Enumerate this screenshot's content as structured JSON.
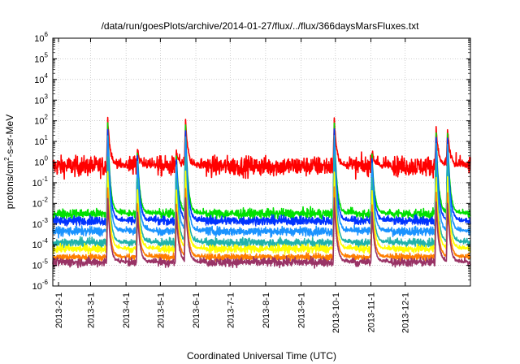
{
  "chart_data": {
    "type": "line",
    "title": "/data/run/goesPlots/archive/2014-01-27/flux/../flux/366daysMarsFluxes.txt",
    "xlabel": "Coordinated Universal Time (UTC)",
    "ylabel": {
      "prefix": "protons/cm",
      "sup": "2",
      "suffix": "-s-sr-MeV"
    },
    "y_scale": "log",
    "ylim_exponent": [
      -6,
      6
    ],
    "y_ticks": [
      {
        "base": "10",
        "exp": "-6"
      },
      {
        "base": "10",
        "exp": "-5"
      },
      {
        "base": "10",
        "exp": "-4"
      },
      {
        "base": "10",
        "exp": "-3"
      },
      {
        "base": "10",
        "exp": "-2"
      },
      {
        "base": "10",
        "exp": "-1"
      },
      {
        "base": "10",
        "exp": "0"
      },
      {
        "base": "10",
        "exp": "1"
      },
      {
        "base": "10",
        "exp": "2"
      },
      {
        "base": "10",
        "exp": "3"
      },
      {
        "base": "10",
        "exp": "4"
      },
      {
        "base": "10",
        "exp": "5"
      },
      {
        "base": "10",
        "exp": "6"
      }
    ],
    "xlim": [
      "2013-01-27",
      "2014-01-27"
    ],
    "x_ticks": [
      "2013-2-1",
      "2013-3-1",
      "2013-4-1",
      "2013-5-1",
      "2013-6-1",
      "2013-7-1",
      "2013-8-1",
      "2013-9-1",
      "2013-10-1",
      "2013-11-1",
      "2013-12-1"
    ],
    "x_tick_dates": [
      "2013-02-01",
      "2013-03-01",
      "2013-04-01",
      "2013-05-01",
      "2013-06-01",
      "2013-07-01",
      "2013-08-01",
      "2013-09-01",
      "2013-10-01",
      "2013-11-01",
      "2013-12-01"
    ],
    "grid": true,
    "legend": "none",
    "events": [
      {
        "date": "2013-03-16",
        "peak_log10_flux": 2.1
      },
      {
        "date": "2013-04-11",
        "peak_log10_flux": 0.6
      },
      {
        "date": "2013-05-15",
        "peak_log10_flux": 0.5
      },
      {
        "date": "2013-05-23",
        "peak_log10_flux": 2.0
      },
      {
        "date": "2013-09-30",
        "peak_log10_flux": 2.1
      },
      {
        "date": "2013-11-02",
        "peak_log10_flux": 0.5
      },
      {
        "date": "2013-12-28",
        "peak_log10_flux": 1.6
      },
      {
        "date": "2014-01-07",
        "peak_log10_flux": 1.6
      }
    ],
    "series": [
      {
        "color": "#ff0000",
        "baseline_log10": -0.2,
        "noise": 0.45,
        "event_scale": 1.0,
        "data_points_per_day": 1
      },
      {
        "color": "#00e000",
        "baseline_log10": -2.5,
        "noise": 0.22,
        "event_scale": 0.95,
        "data_points_per_day": 1
      },
      {
        "color": "#0033ff",
        "baseline_log10": -2.85,
        "noise": 0.22,
        "event_scale": 0.9,
        "data_points_per_day": 1
      },
      {
        "color": "#ffffff",
        "baseline_log10": -3.15,
        "noise": 0.12,
        "event_scale": 0.7,
        "data_points_per_day": 1
      },
      {
        "color": "#1a93ff",
        "baseline_log10": -3.35,
        "noise": 0.2,
        "event_scale": 0.85,
        "data_points_per_day": 1
      },
      {
        "color": "#20b2aa",
        "baseline_log10": -3.9,
        "noise": 0.2,
        "event_scale": 0.7,
        "data_points_per_day": 1
      },
      {
        "color": "#ffff00",
        "baseline_log10": -4.2,
        "noise": 0.18,
        "event_scale": 0.6,
        "data_points_per_day": 1
      },
      {
        "color": "#ff7f00",
        "baseline_log10": -4.6,
        "noise": 0.15,
        "event_scale": 0.5,
        "data_points_per_day": 1
      },
      {
        "color": "#993366",
        "baseline_log10": -4.85,
        "noise": 0.2,
        "event_scale": 0.45,
        "data_points_per_day": 1
      }
    ]
  }
}
